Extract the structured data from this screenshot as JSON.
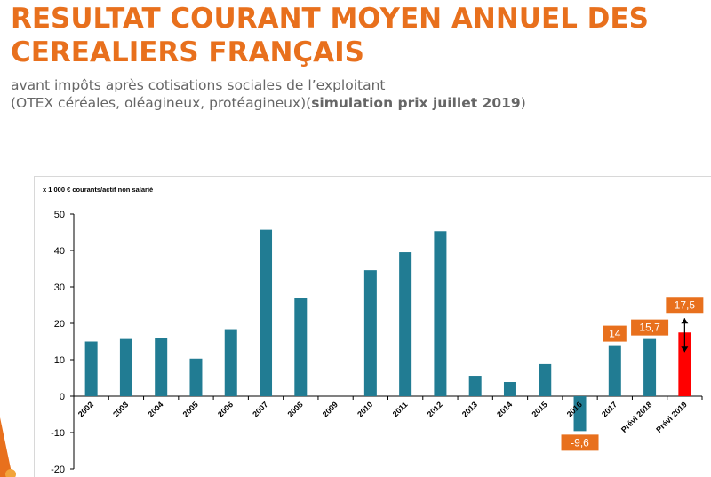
{
  "header": {
    "title_line1": "RESULTAT COURANT MOYEN ANNUEL DES",
    "title_line2": "CEREALIERS FRANÇAIS",
    "subtitle_line1": "avant impôts après cotisations sociales de l’exploitant",
    "subtitle_line2_a": "(OTEX céréales, oléagineux, protéagineux)(",
    "subtitle_line2_bold": "simulation prix juillet 2019",
    "subtitle_line2_b": ")"
  },
  "colors": {
    "title": "#e8701d",
    "bar": "#217c93",
    "bar_highlight": "#ff0000",
    "label_box": "#e8701d"
  },
  "chart_data": {
    "type": "bar",
    "ylabel": "x 1 000 € courants/actif non salarié",
    "ylim": [
      -20,
      50
    ],
    "yticks": [
      -20,
      -10,
      0,
      10,
      20,
      30,
      40,
      50
    ],
    "grid": false,
    "categories": [
      "2002",
      "2003",
      "2004",
      "2005",
      "2006",
      "2007",
      "2008",
      "2009",
      "2010",
      "2011",
      "2012",
      "2013",
      "2014",
      "2015",
      "2016",
      "2017",
      "Prévi 2018",
      "Prévi 2019"
    ],
    "values": [
      15,
      15.7,
      15.9,
      10.3,
      18.4,
      45.7,
      26.9,
      null,
      34.6,
      39.5,
      45.3,
      5.6,
      3.9,
      8.8,
      -9.6,
      14,
      15.7,
      17.5
    ],
    "highlight_index": 17,
    "data_labels": [
      {
        "index": 14,
        "text": "-9,6"
      },
      {
        "index": 15,
        "text": "14"
      },
      {
        "index": 16,
        "text": "15,7"
      },
      {
        "index": 17,
        "text": "17,5"
      }
    ]
  }
}
